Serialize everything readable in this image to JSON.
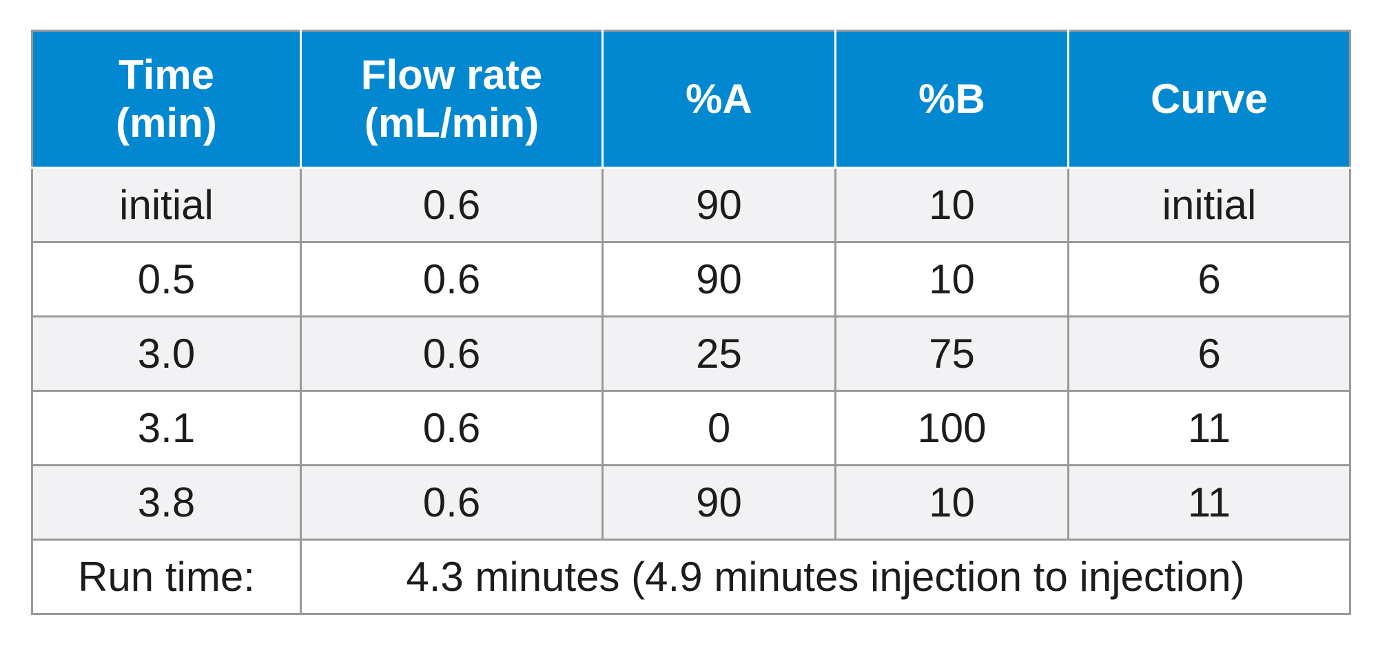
{
  "table": {
    "headers": [
      {
        "line1": "Time",
        "line2": "(min)"
      },
      {
        "line1": "Flow rate",
        "line2": "(mL/min)"
      },
      {
        "line1": "%A",
        "line2": ""
      },
      {
        "line1": "%B",
        "line2": ""
      },
      {
        "line1": "Curve",
        "line2": ""
      }
    ],
    "rows": [
      [
        "initial",
        "0.6",
        "90",
        "10",
        "initial"
      ],
      [
        "0.5",
        "0.6",
        "90",
        "10",
        "6"
      ],
      [
        "3.0",
        "0.6",
        "25",
        "75",
        "6"
      ],
      [
        "3.1",
        "0.6",
        "0",
        "100",
        "11"
      ],
      [
        "3.8",
        "0.6",
        "90",
        "10",
        "11"
      ]
    ],
    "footer": {
      "label": "Run time:",
      "value": "4.3 minutes (4.9 minutes injection to injection)"
    }
  },
  "colors": {
    "header_bg": "#0288d1",
    "header_text": "#ffffff",
    "odd_row_bg": "#f2f2f4",
    "even_row_bg": "#ffffff",
    "border": "#9a9a9a",
    "text": "#1c1c1c"
  }
}
